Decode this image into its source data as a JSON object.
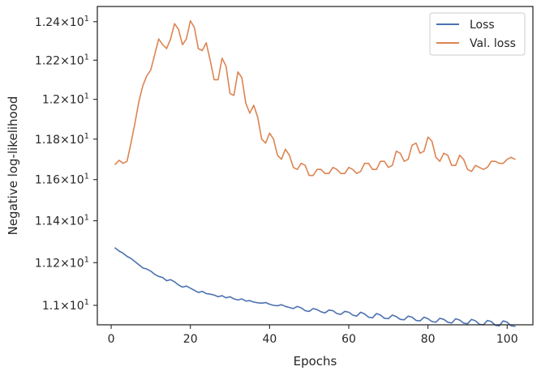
{
  "chart_data": {
    "type": "line",
    "xlabel": "Epochs",
    "ylabel": "Negative log-likelihood",
    "xlim": [
      -3.5,
      106.5
    ],
    "ylim": [
      10.91,
      12.48
    ],
    "y_scale": "log",
    "grid": false,
    "legend_position": "top-right",
    "x_ticks": [
      0,
      20,
      40,
      60,
      80,
      100
    ],
    "x_tick_labels": [
      "0",
      "20",
      "40",
      "60",
      "80",
      "100"
    ],
    "y_ticks": [
      11.0,
      11.2,
      11.4,
      11.6,
      11.8,
      12.0,
      12.2,
      12.4
    ],
    "y_tick_labels": [
      {
        "mantissa": "1.1",
        "base": "10",
        "exp": "1"
      },
      {
        "mantissa": "1.12",
        "base": "10",
        "exp": "1"
      },
      {
        "mantissa": "1.14",
        "base": "10",
        "exp": "1"
      },
      {
        "mantissa": "1.16",
        "base": "10",
        "exp": "1"
      },
      {
        "mantissa": "1.18",
        "base": "10",
        "exp": "1"
      },
      {
        "mantissa": "1.2",
        "base": "10",
        "exp": "1"
      },
      {
        "mantissa": "1.22",
        "base": "10",
        "exp": "1"
      },
      {
        "mantissa": "1.24",
        "base": "10",
        "exp": "1"
      }
    ],
    "series": [
      {
        "name": "Loss",
        "color": "#4c72b0",
        "x": [
          1,
          2,
          3,
          4,
          5,
          6,
          7,
          8,
          9,
          10,
          11,
          12,
          13,
          14,
          15,
          16,
          17,
          18,
          19,
          20,
          21,
          22,
          23,
          24,
          25,
          26,
          27,
          28,
          29,
          30,
          31,
          32,
          33,
          34,
          35,
          36,
          37,
          38,
          39,
          40,
          41,
          42,
          43,
          44,
          45,
          46,
          47,
          48,
          49,
          50,
          51,
          52,
          53,
          54,
          55,
          56,
          57,
          58,
          59,
          60,
          61,
          62,
          63,
          64,
          65,
          66,
          67,
          68,
          69,
          70,
          71,
          72,
          73,
          74,
          75,
          76,
          77,
          78,
          79,
          80,
          81,
          82,
          83,
          84,
          85,
          86,
          87,
          88,
          89,
          90,
          91,
          92,
          93,
          94,
          95,
          96,
          97,
          98,
          99,
          100,
          101,
          102
        ],
        "y": [
          11.27,
          11.255,
          11.245,
          11.23,
          11.22,
          11.205,
          11.19,
          11.175,
          11.17,
          11.16,
          11.145,
          11.135,
          11.13,
          11.115,
          11.12,
          11.11,
          11.095,
          11.085,
          11.09,
          11.08,
          11.07,
          11.06,
          11.065,
          11.055,
          11.052,
          11.048,
          11.04,
          11.045,
          11.035,
          11.04,
          11.03,
          11.025,
          11.03,
          11.02,
          11.022,
          11.015,
          11.012,
          11.01,
          11.013,
          11.005,
          11.0,
          10.998,
          11.003,
          10.995,
          10.99,
          10.985,
          10.995,
          10.988,
          10.975,
          10.972,
          10.985,
          10.98,
          10.97,
          10.965,
          10.978,
          10.975,
          10.962,
          10.958,
          10.972,
          10.968,
          10.955,
          10.95,
          10.968,
          10.96,
          10.945,
          10.942,
          10.962,
          10.955,
          10.94,
          10.938,
          10.955,
          10.948,
          10.935,
          10.933,
          10.95,
          10.945,
          10.93,
          10.928,
          10.945,
          10.938,
          10.925,
          10.922,
          10.94,
          10.935,
          10.922,
          10.918,
          10.938,
          10.932,
          10.918,
          10.915,
          10.935,
          10.928,
          10.912,
          10.91,
          10.93,
          10.925,
          10.908,
          10.905,
          10.928,
          10.922,
          10.905,
          10.903
        ]
      },
      {
        "name": "Val. loss",
        "color": "#dd8452",
        "x": [
          1,
          2,
          3,
          4,
          5,
          6,
          7,
          8,
          9,
          10,
          11,
          12,
          13,
          14,
          15,
          16,
          17,
          18,
          19,
          20,
          21,
          22,
          23,
          24,
          25,
          26,
          27,
          28,
          29,
          30,
          31,
          32,
          33,
          34,
          35,
          36,
          37,
          38,
          39,
          40,
          41,
          42,
          43,
          44,
          45,
          46,
          47,
          48,
          49,
          50,
          51,
          52,
          53,
          54,
          55,
          56,
          57,
          58,
          59,
          60,
          61,
          62,
          63,
          64,
          65,
          66,
          67,
          68,
          69,
          70,
          71,
          72,
          73,
          74,
          75,
          76,
          77,
          78,
          79,
          80,
          81,
          82,
          83,
          84,
          85,
          86,
          87,
          88,
          89,
          90,
          91,
          92,
          93,
          94,
          95,
          96,
          97,
          98,
          99,
          100,
          101,
          102
        ],
        "y": [
          11.675,
          11.695,
          11.68,
          11.69,
          11.78,
          11.88,
          11.99,
          12.07,
          12.12,
          12.15,
          12.23,
          12.31,
          12.28,
          12.26,
          12.31,
          12.39,
          12.36,
          12.28,
          12.31,
          12.405,
          12.37,
          12.26,
          12.25,
          12.29,
          12.2,
          12.1,
          12.1,
          12.21,
          12.17,
          12.03,
          12.02,
          12.14,
          12.11,
          11.98,
          11.93,
          11.97,
          11.91,
          11.8,
          11.78,
          11.83,
          11.8,
          11.72,
          11.7,
          11.75,
          11.72,
          11.66,
          11.65,
          11.68,
          11.67,
          11.62,
          11.62,
          11.65,
          11.65,
          11.63,
          11.63,
          11.66,
          11.65,
          11.63,
          11.63,
          11.66,
          11.65,
          11.63,
          11.64,
          11.68,
          11.68,
          11.65,
          11.65,
          11.69,
          11.69,
          11.66,
          11.67,
          11.74,
          11.73,
          11.69,
          11.7,
          11.77,
          11.78,
          11.73,
          11.74,
          11.81,
          11.79,
          11.71,
          11.69,
          11.73,
          11.72,
          11.67,
          11.67,
          11.72,
          11.7,
          11.65,
          11.64,
          11.67,
          11.66,
          11.65,
          11.66,
          11.69,
          11.69,
          11.68,
          11.68,
          11.7,
          11.71,
          11.7
        ]
      }
    ]
  }
}
